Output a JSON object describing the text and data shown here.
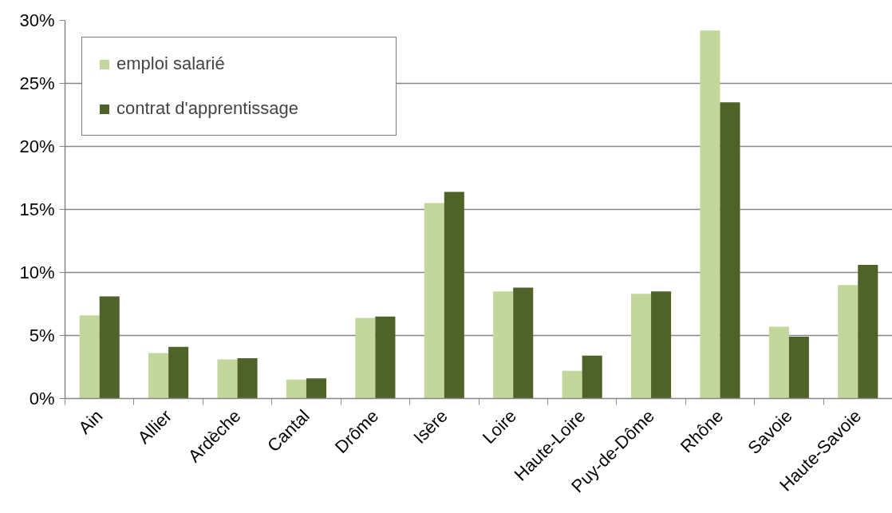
{
  "chart_data": {
    "type": "bar",
    "categories": [
      "Ain",
      "Allier",
      "Ardèche",
      "Cantal",
      "Drôme",
      "Isère",
      "Loire",
      "Haute-Loire",
      "Puy-de-Dôme",
      "Rhône",
      "Savoie",
      "Haute-Savoie"
    ],
    "series": [
      {
        "name": "emploi salarié",
        "color": "#c3d69b",
        "values": [
          6.6,
          3.6,
          3.1,
          1.5,
          6.4,
          15.5,
          8.5,
          2.2,
          8.3,
          29.2,
          5.7,
          9.0
        ]
      },
      {
        "name": "contrat d'apprentissage",
        "color": "#4f6228",
        "values": [
          8.1,
          4.1,
          3.2,
          1.6,
          6.5,
          16.4,
          8.8,
          3.4,
          8.5,
          23.5,
          4.9,
          10.6
        ]
      }
    ],
    "ylim": [
      0,
      30
    ],
    "yticks": [
      {
        "value": 0,
        "label": "0%"
      },
      {
        "value": 5,
        "label": "5%"
      },
      {
        "value": 10,
        "label": "10%"
      },
      {
        "value": 15,
        "label": "15%"
      },
      {
        "value": 20,
        "label": "20%"
      },
      {
        "value": 25,
        "label": "25%"
      },
      {
        "value": 30,
        "label": "30%"
      }
    ],
    "grid": "y",
    "legend": "top left"
  }
}
